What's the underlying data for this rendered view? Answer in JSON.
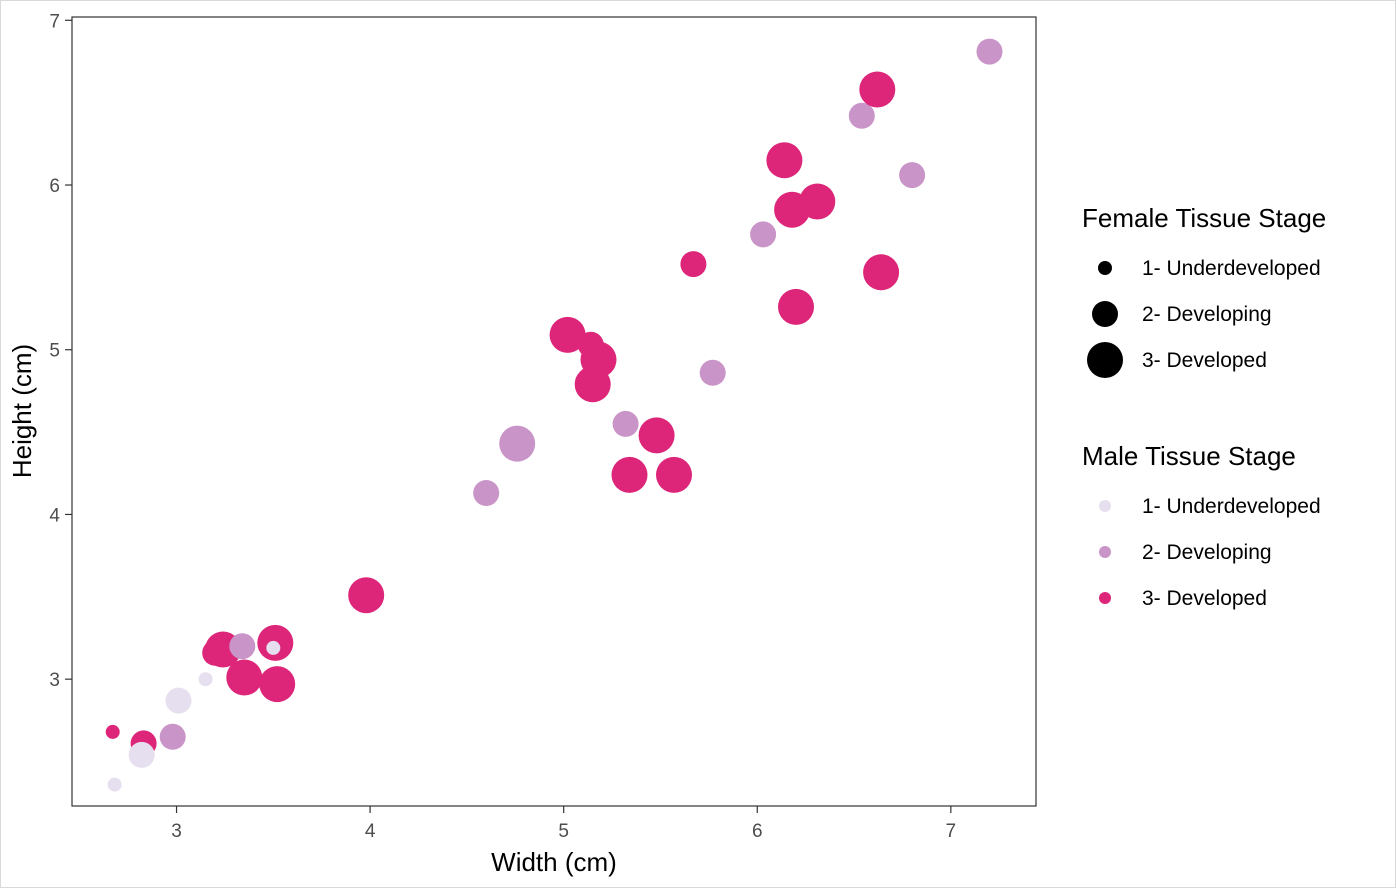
{
  "chart_data": {
    "type": "scatter",
    "xlabel": "Width (cm)",
    "ylabel": "Height (cm)",
    "xlim": [
      2.46,
      7.44
    ],
    "ylim": [
      2.23,
      7.02
    ],
    "xticks": [
      3,
      4,
      5,
      6,
      7
    ],
    "yticks": [
      3,
      4,
      5,
      6,
      7
    ],
    "grid": false,
    "legend_position": "right",
    "colors": {
      "1": "#e6dfef",
      "2": "#c994c7",
      "3": "#dd2679"
    },
    "female_legend": {
      "title": "Female Tissue Stage",
      "items": [
        {
          "label": "1- Underdeveloped",
          "stage": 1
        },
        {
          "label": "2- Developing",
          "stage": 2
        },
        {
          "label": "3- Developed",
          "stage": 3
        }
      ]
    },
    "male_legend": {
      "title": "Male Tissue Stage",
      "items": [
        {
          "label": "1- Underdeveloped",
          "stage": 1
        },
        {
          "label": "2- Developing",
          "stage": 2
        },
        {
          "label": "3- Developed",
          "stage": 3
        }
      ]
    },
    "points": [
      {
        "x": 2.68,
        "y": 2.36,
        "female": 1,
        "male": 1
      },
      {
        "x": 2.67,
        "y": 2.68,
        "female": 1,
        "male": 3
      },
      {
        "x": 2.83,
        "y": 2.61,
        "female": 2,
        "male": 3
      },
      {
        "x": 2.82,
        "y": 2.54,
        "female": 2,
        "male": 1
      },
      {
        "x": 2.98,
        "y": 2.65,
        "female": 2,
        "male": 2
      },
      {
        "x": 3.01,
        "y": 2.87,
        "female": 2,
        "male": 1
      },
      {
        "x": 3.15,
        "y": 3.0,
        "female": 1,
        "male": 1
      },
      {
        "x": 3.2,
        "y": 3.16,
        "female": 2,
        "male": 3
      },
      {
        "x": 3.24,
        "y": 3.18,
        "female": 3,
        "male": 3
      },
      {
        "x": 3.34,
        "y": 3.2,
        "female": 2,
        "male": 2
      },
      {
        "x": 3.35,
        "y": 3.01,
        "female": 3,
        "male": 3
      },
      {
        "x": 3.51,
        "y": 3.22,
        "female": 3,
        "male": 3
      },
      {
        "x": 3.5,
        "y": 3.19,
        "female": 1,
        "male": 1
      },
      {
        "x": 3.52,
        "y": 2.97,
        "female": 3,
        "male": 3
      },
      {
        "x": 3.98,
        "y": 3.51,
        "female": 3,
        "male": 3
      },
      {
        "x": 4.6,
        "y": 4.13,
        "female": 2,
        "male": 2
      },
      {
        "x": 4.76,
        "y": 4.43,
        "female": 3,
        "male": 2
      },
      {
        "x": 5.02,
        "y": 5.09,
        "female": 3,
        "male": 3
      },
      {
        "x": 5.14,
        "y": 5.03,
        "female": 2,
        "male": 3
      },
      {
        "x": 5.18,
        "y": 4.94,
        "female": 3,
        "male": 3
      },
      {
        "x": 5.15,
        "y": 4.79,
        "female": 3,
        "male": 3
      },
      {
        "x": 5.32,
        "y": 4.55,
        "female": 2,
        "male": 2
      },
      {
        "x": 5.48,
        "y": 4.48,
        "female": 3,
        "male": 3
      },
      {
        "x": 5.34,
        "y": 4.24,
        "female": 3,
        "male": 3
      },
      {
        "x": 5.57,
        "y": 4.24,
        "female": 3,
        "male": 3
      },
      {
        "x": 5.67,
        "y": 5.52,
        "female": 2,
        "male": 3
      },
      {
        "x": 5.77,
        "y": 4.86,
        "female": 2,
        "male": 2
      },
      {
        "x": 6.03,
        "y": 5.7,
        "female": 2,
        "male": 2
      },
      {
        "x": 6.14,
        "y": 6.15,
        "female": 3,
        "male": 3
      },
      {
        "x": 6.18,
        "y": 5.85,
        "female": 3,
        "male": 3
      },
      {
        "x": 6.31,
        "y": 5.9,
        "female": 3,
        "male": 3
      },
      {
        "x": 6.2,
        "y": 5.26,
        "female": 3,
        "male": 3
      },
      {
        "x": 6.54,
        "y": 6.42,
        "female": 2,
        "male": 2
      },
      {
        "x": 6.62,
        "y": 6.58,
        "female": 3,
        "male": 3
      },
      {
        "x": 6.64,
        "y": 5.47,
        "female": 3,
        "male": 3
      },
      {
        "x": 6.8,
        "y": 6.06,
        "female": 2,
        "male": 2
      },
      {
        "x": 7.2,
        "y": 6.81,
        "female": 2,
        "male": 2
      }
    ]
  }
}
